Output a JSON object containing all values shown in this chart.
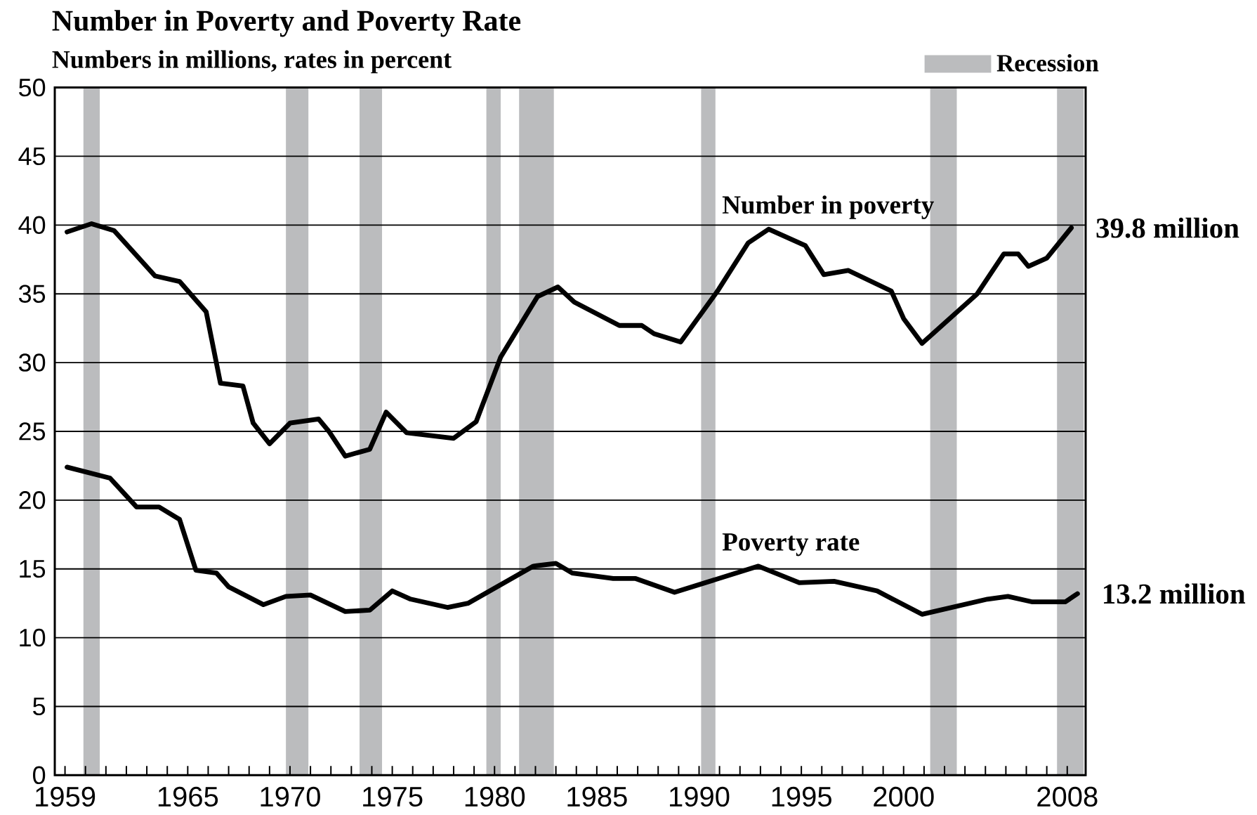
{
  "chart_data": {
    "type": "line",
    "title": "Number in Poverty and Poverty Rate",
    "subtitle": "Numbers in millions, rates in percent",
    "xlim": [
      1958.5,
      2008.9
    ],
    "xticks": [
      1959,
      {
        "value": 1960,
        "label": null
      },
      {
        "value": 1961,
        "label": null
      },
      {
        "value": 1962,
        "label": null
      },
      {
        "value": 1963,
        "label": null
      },
      {
        "value": 1964,
        "label": null
      },
      1965,
      {
        "value": 1966,
        "label": null
      },
      {
        "value": 1967,
        "label": null
      },
      {
        "value": 1968,
        "label": null
      },
      {
        "value": 1969,
        "label": null
      },
      1970,
      {
        "value": 1971,
        "label": null
      },
      {
        "value": 1972,
        "label": null
      },
      {
        "value": 1973,
        "label": null
      },
      {
        "value": 1974,
        "label": null
      },
      1975,
      {
        "value": 1976,
        "label": null
      },
      {
        "value": 1977,
        "label": null
      },
      {
        "value": 1978,
        "label": null
      },
      {
        "value": 1979,
        "label": null
      },
      1980,
      {
        "value": 1981,
        "label": null
      },
      {
        "value": 1982,
        "label": null
      },
      {
        "value": 1983,
        "label": null
      },
      {
        "value": 1984,
        "label": null
      },
      1985,
      {
        "value": 1986,
        "label": null
      },
      {
        "value": 1987,
        "label": null
      },
      {
        "value": 1988,
        "label": null
      },
      {
        "value": 1989,
        "label": null
      },
      1990,
      {
        "value": 1991,
        "label": null
      },
      {
        "value": 1992,
        "label": null
      },
      {
        "value": 1993,
        "label": null
      },
      {
        "value": 1994,
        "label": null
      },
      1995,
      {
        "value": 1996,
        "label": null
      },
      {
        "value": 1997,
        "label": null
      },
      {
        "value": 1998,
        "label": null
      },
      {
        "value": 1999,
        "label": null
      },
      2000,
      {
        "value": 2001,
        "label": null
      },
      {
        "value": 2002,
        "label": null
      },
      {
        "value": 2003,
        "label": null
      },
      {
        "value": 2004,
        "label": null
      },
      {
        "value": 2005,
        "label": null
      },
      {
        "value": 2006,
        "label": null
      },
      {
        "value": 2007,
        "label": null
      },
      2008
    ],
    "ylim": [
      0,
      50
    ],
    "yticks": [
      0,
      5,
      10,
      15,
      20,
      25,
      30,
      35,
      40,
      45,
      50
    ],
    "grid": "y",
    "legend": "top right",
    "line_style": "solid",
    "series": [
      {
        "name": "Number in poverty",
        "color": "#000000",
        "x": [
          1959.1,
          1960.3,
          1961.4,
          1963.4,
          1964.6,
          1965.9,
          1966.6,
          1967.7,
          1968.2,
          1969.0,
          1970.0,
          1971.4,
          1971.9,
          1972.7,
          1973.9,
          1974.7,
          1975.7,
          1978.0,
          1979.1,
          1980.3,
          1982.1,
          1983.1,
          1983.9,
          1986.1,
          1987.2,
          1987.8,
          1989.1,
          1990.9,
          1992.4,
          1993.4,
          1995.2,
          1996.1,
          1997.3,
          1999.4,
          2000.0,
          2000.9,
          2003.6,
          2004.9,
          2005.6,
          2006.1,
          2007.0,
          2008.2
        ],
        "values": [
          39.5,
          40.1,
          39.6,
          36.3,
          35.9,
          33.7,
          28.5,
          28.3,
          25.6,
          24.1,
          25.6,
          25.9,
          25.0,
          23.2,
          23.7,
          26.4,
          24.9,
          24.5,
          25.7,
          30.4,
          34.8,
          35.5,
          34.4,
          32.7,
          32.7,
          32.1,
          31.5,
          35.2,
          38.7,
          39.7,
          38.5,
          36.4,
          36.7,
          35.2,
          33.2,
          31.4,
          35.0,
          37.9,
          37.9,
          37.0,
          37.6,
          39.8
        ]
      },
      {
        "name": "Poverty rate",
        "color": "#000000",
        "x": [
          1959.1,
          1961.2,
          1962.5,
          1963.6,
          1964.6,
          1965.4,
          1966.4,
          1967.0,
          1968.7,
          1969.8,
          1971.0,
          1972.7,
          1973.9,
          1975.0,
          1975.9,
          1977.7,
          1978.7,
          1981.9,
          1983.0,
          1983.8,
          1985.8,
          1986.9,
          1988.8,
          1992.9,
          1994.9,
          1996.6,
          1998.7,
          2000.9,
          2004.1,
          2005.1,
          2006.3,
          2007.9,
          2008.5
        ],
        "values": [
          22.4,
          21.6,
          19.5,
          19.5,
          18.6,
          14.9,
          14.7,
          13.7,
          12.4,
          13.0,
          13.1,
          11.9,
          12.0,
          13.4,
          12.8,
          12.2,
          12.5,
          15.2,
          15.4,
          14.7,
          14.3,
          14.3,
          13.3,
          15.2,
          14.0,
          14.1,
          13.4,
          11.7,
          12.8,
          13.0,
          12.6,
          12.6,
          13.2
        ]
      }
    ],
    "bands": [
      {
        "axis": "x",
        "from": 1959.9,
        "to": 1960.7,
        "color": "#bbbcbe",
        "label": "Recession"
      },
      {
        "axis": "x",
        "from": 1969.8,
        "to": 1970.9,
        "color": "#bbbcbe"
      },
      {
        "axis": "x",
        "from": 1973.4,
        "to": 1974.5,
        "color": "#bbbcbe"
      },
      {
        "axis": "x",
        "from": 1979.6,
        "to": 1980.3,
        "color": "#bbbcbe"
      },
      {
        "axis": "x",
        "from": 1981.2,
        "to": 1982.9,
        "color": "#bbbcbe"
      },
      {
        "axis": "x",
        "from": 1990.1,
        "to": 1990.8,
        "color": "#bbbcbe"
      },
      {
        "axis": "x",
        "from": 2001.3,
        "to": 2002.6,
        "color": "#bbbcbe"
      },
      {
        "axis": "x",
        "from": 2007.5,
        "to": 2008.8,
        "color": "#bbbcbe"
      }
    ],
    "annotations": [
      {
        "text": "39.8 million",
        "x": 2008.2,
        "y": 39.8
      },
      {
        "text": "13.2 million",
        "x": 2008.5,
        "y": 13.2
      }
    ]
  }
}
